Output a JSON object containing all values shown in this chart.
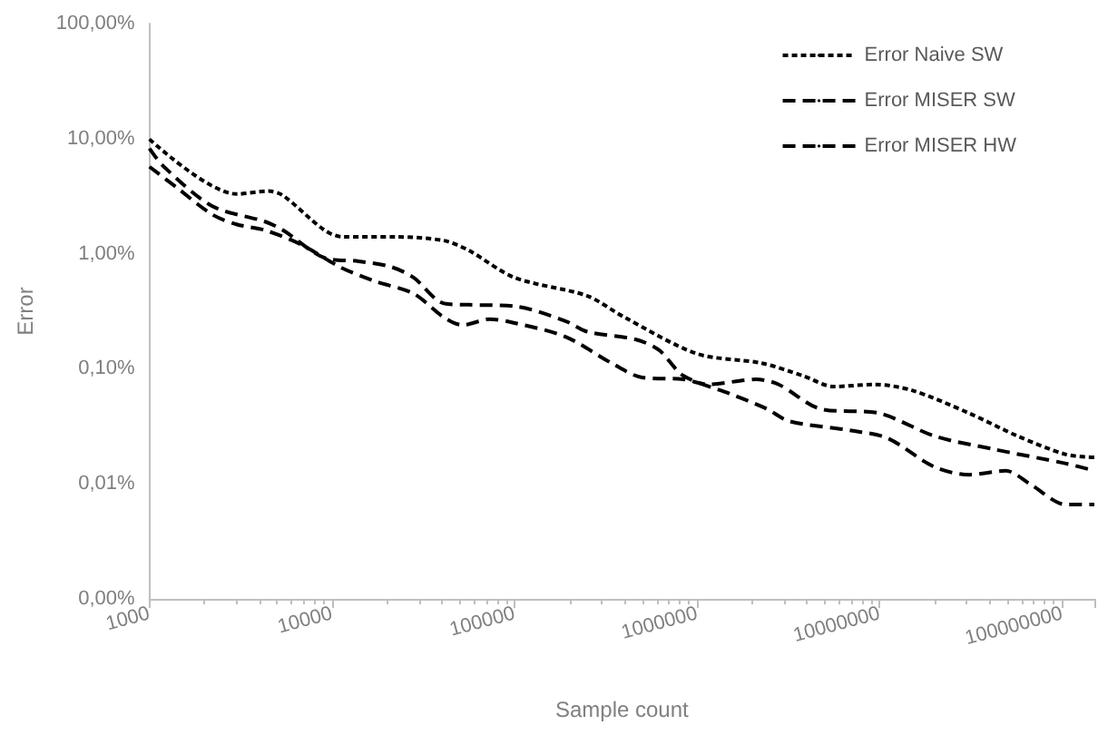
{
  "chart_data": {
    "type": "line",
    "xlabel": "Sample count",
    "ylabel": "Error",
    "log": "xy",
    "grid": false,
    "legend": "top right",
    "marker": "none",
    "xlim": [
      1000,
      150000000
    ],
    "xticks": [
      1000,
      10000,
      100000,
      1000000,
      10000000,
      100000000
    ],
    "ylim": [
      0.001,
      100
    ],
    "yticks": [
      {
        "value": 0.001,
        "label": "0,00%"
      },
      {
        "value": 0.01,
        "label": "0,01%"
      },
      {
        "value": 0.1,
        "label": "0,10%"
      },
      {
        "value": 1,
        "label": "1,00%"
      },
      {
        "value": 10,
        "label": "10,00%"
      },
      {
        "value": 100,
        "label": "100,00%"
      }
    ],
    "series": [
      {
        "name": "Error Naive SW",
        "color": "#000000",
        "line_style": "dotted",
        "x": [
          1000,
          3000,
          4500,
          5400,
          9100,
          11500,
          22500,
          41000,
          56000,
          100000,
          250000,
          400000,
          1000000,
          2250000,
          3800000,
          5600000,
          9300000,
          15000000,
          31000000,
          57000000,
          105000000,
          150000000
        ],
        "values": [
          9.9,
          3.3,
          3.5,
          3.2,
          1.6,
          1.4,
          1.4,
          1.3,
          1.07,
          0.62,
          0.43,
          0.28,
          0.135,
          0.112,
          0.087,
          0.07,
          0.073,
          0.065,
          0.041,
          0.026,
          0.018,
          0.017
        ]
      },
      {
        "name": "Error MISER SW",
        "color": "#000000",
        "line_style": "dashed",
        "x": [
          1000,
          1200,
          2200,
          4300,
          5400,
          9100,
          14000,
          21000,
          28000,
          41000,
          56000,
          100000,
          190000,
          250000,
          460000,
          620000,
          840000,
          1500000,
          2400000,
          3200000,
          7000000,
          11000000,
          20000000,
          31000000,
          49000000,
          67000000,
          105000000,
          150000000
        ],
        "values": [
          8.2,
          5.7,
          2.6,
          1.9,
          1.6,
          0.92,
          0.86,
          0.77,
          0.62,
          0.37,
          0.36,
          0.35,
          0.26,
          0.21,
          0.18,
          0.145,
          0.087,
          0.061,
          0.045,
          0.035,
          0.029,
          0.025,
          0.014,
          0.012,
          0.013,
          0.0099,
          0.0066,
          0.0066
        ]
      },
      {
        "name": "Error MISER HW",
        "color": "#000000",
        "line_style": "dashed",
        "x": [
          1000,
          1400,
          2200,
          3000,
          4300,
          6800,
          11000,
          17000,
          28000,
          41000,
          52000,
          73000,
          100000,
          190000,
          340000,
          500000,
          840000,
          1150000,
          2100000,
          2800000,
          4700000,
          10000000,
          20000000,
          42000000,
          105000000,
          150000000
        ],
        "values": [
          5.7,
          3.8,
          2.2,
          1.8,
          1.6,
          1.2,
          0.77,
          0.58,
          0.45,
          0.28,
          0.24,
          0.27,
          0.25,
          0.19,
          0.112,
          0.084,
          0.081,
          0.073,
          0.081,
          0.073,
          0.045,
          0.041,
          0.026,
          0.02,
          0.015,
          0.013
        ]
      }
    ]
  }
}
